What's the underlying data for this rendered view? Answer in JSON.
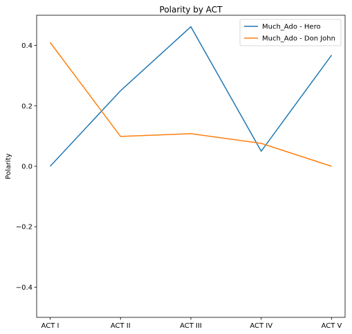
{
  "chart_data": {
    "type": "line",
    "title": "Polarity by ACT",
    "xlabel": "",
    "ylabel": "Polarity",
    "categories": [
      "ACT I",
      "ACT II",
      "ACT III",
      "ACT IV",
      "ACT V"
    ],
    "series": [
      {
        "name": "Much_Ado - Hero",
        "color": "#1f77b4",
        "values": [
          0.0,
          0.25,
          0.462,
          0.05,
          0.368
        ]
      },
      {
        "name": "Much_Ado - Don John",
        "color": "#ff7f0e",
        "values": [
          0.41,
          0.099,
          0.108,
          0.076,
          0.0
        ]
      }
    ],
    "ylim": [
      -0.5,
      0.5
    ],
    "yticks": [
      -0.4,
      -0.2,
      0.0,
      0.2,
      0.4
    ],
    "ytick_labels": [
      "−0.4",
      "−0.2",
      "0.0",
      "0.2",
      "0.4"
    ],
    "grid": false,
    "legend_position": "top-right"
  }
}
